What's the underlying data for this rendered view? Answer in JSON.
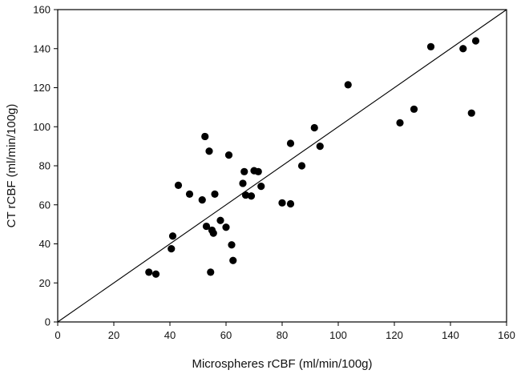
{
  "chart_data": {
    "type": "scatter",
    "xlabel": "Microspheres rCBF (ml/min/100g)",
    "ylabel": "CT rCBF (ml/min/100g)",
    "xlim": [
      0,
      160
    ],
    "ylim": [
      0,
      160
    ],
    "xticks": [
      0,
      20,
      40,
      60,
      80,
      100,
      120,
      140,
      160
    ],
    "yticks": [
      0,
      20,
      40,
      60,
      80,
      100,
      120,
      140,
      160
    ],
    "grid": false,
    "marker_color": "#000000",
    "reference_line": {
      "type": "identity",
      "from": [
        0,
        0
      ],
      "to": [
        160,
        160
      ]
    },
    "series": [
      {
        "points": [
          [
            32.5,
            25.5
          ],
          [
            35,
            24.5
          ],
          [
            40.5,
            37.5
          ],
          [
            41,
            44
          ],
          [
            43,
            70
          ],
          [
            47,
            65.5
          ],
          [
            51.5,
            62.5
          ],
          [
            52.5,
            95
          ],
          [
            53,
            49
          ],
          [
            54,
            87.5
          ],
          [
            54.5,
            25.5
          ],
          [
            55,
            47
          ],
          [
            55.5,
            45.5
          ],
          [
            56,
            65.5
          ],
          [
            58,
            52
          ],
          [
            60,
            48.5
          ],
          [
            61,
            85.5
          ],
          [
            62,
            39.5
          ],
          [
            62.5,
            31.5
          ],
          [
            66,
            71
          ],
          [
            66.5,
            77
          ],
          [
            67,
            65
          ],
          [
            69,
            64.5
          ],
          [
            70,
            77.5
          ],
          [
            71.5,
            77
          ],
          [
            72.5,
            69.5
          ],
          [
            80,
            61
          ],
          [
            83,
            60.5
          ],
          [
            83,
            91.5
          ],
          [
            87,
            80
          ],
          [
            91.5,
            99.5
          ],
          [
            93.5,
            90
          ],
          [
            103.5,
            121.5
          ],
          [
            122,
            102
          ],
          [
            127,
            109
          ],
          [
            133,
            141
          ],
          [
            144.5,
            140
          ],
          [
            147.5,
            107
          ],
          [
            149,
            144
          ]
        ]
      }
    ]
  }
}
